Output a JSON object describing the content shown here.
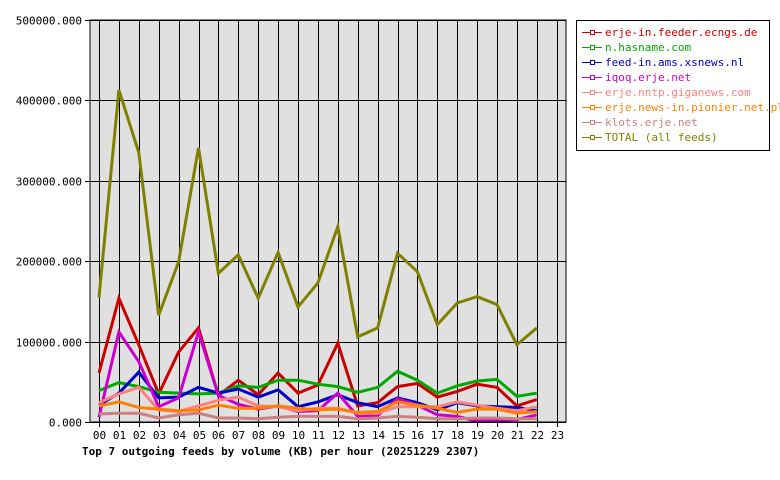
{
  "chart_data": {
    "type": "line",
    "title": "Top 7 outgoing feeds by volume (KB) per hour (20251229 2307)",
    "xlabel": "",
    "ylabel": "",
    "ylim": [
      0,
      500000
    ],
    "yticks": [
      "0.000",
      "100000.000",
      "200000.000",
      "300000.000",
      "400000.000",
      "500000.000"
    ],
    "categories": [
      "00",
      "01",
      "02",
      "03",
      "04",
      "05",
      "06",
      "07",
      "08",
      "09",
      "10",
      "11",
      "12",
      "13",
      "14",
      "15",
      "16",
      "17",
      "18",
      "19",
      "20",
      "21",
      "22",
      "23"
    ],
    "grid": true,
    "legend_position": "right",
    "series": [
      {
        "name": "erje-in.feeder.ecngs.de",
        "color": "#cc0000",
        "values": [
          61000,
          154000,
          96000,
          35000,
          87000,
          117000,
          33000,
          52000,
          34000,
          61000,
          36000,
          46000,
          98000,
          20000,
          24000,
          44000,
          48000,
          31000,
          38000,
          47000,
          43000,
          20000,
          28000
        ]
      },
      {
        "name": "n.hasname.com",
        "color": "#00aa00",
        "values": [
          39000,
          49000,
          44000,
          37000,
          36000,
          35000,
          36000,
          45000,
          43000,
          52000,
          52000,
          47000,
          44000,
          37000,
          43000,
          63000,
          52000,
          36000,
          45000,
          51000,
          53000,
          32000,
          36000
        ]
      },
      {
        "name": "feed-in.ams.xsnews.nl",
        "color": "#0000cc",
        "values": [
          21000,
          36000,
          62000,
          30000,
          31000,
          43000,
          36000,
          41000,
          31000,
          40000,
          19000,
          25000,
          34000,
          24000,
          19000,
          30000,
          24000,
          15000,
          24000,
          20000,
          19000,
          18000,
          14000
        ]
      },
      {
        "name": "iqoq.erje.net",
        "color": "#cc00cc",
        "values": [
          6000,
          112000,
          75000,
          19000,
          30000,
          112000,
          33000,
          22000,
          16000,
          20000,
          13000,
          14000,
          36000,
          7000,
          8000,
          29000,
          21000,
          9000,
          7000,
          1000,
          2000,
          3000,
          9000
        ]
      },
      {
        "name": "erje.nntp.giganews.com",
        "color": "#ff8080",
        "values": [
          24000,
          35000,
          43000,
          15000,
          13000,
          20000,
          27000,
          31000,
          20000,
          19000,
          14000,
          17000,
          17000,
          11000,
          11000,
          19000,
          19000,
          19000,
          25000,
          21000,
          17000,
          14000,
          19000
        ]
      },
      {
        "name": "erje.news-in.pionier.net.pl",
        "color": "#ff8000",
        "values": [
          20000,
          25000,
          18000,
          16000,
          14000,
          15000,
          21000,
          17000,
          17000,
          20000,
          17000,
          15000,
          16000,
          12000,
          13000,
          25000,
          21000,
          17000,
          12000,
          16000,
          16000,
          11000,
          13000
        ]
      },
      {
        "name": "klots.erje.net",
        "color": "#cc8080",
        "values": [
          10000,
          11000,
          11000,
          5000,
          9000,
          11000,
          5000,
          5000,
          4000,
          6000,
          7000,
          7000,
          7000,
          4000,
          5000,
          7000,
          6000,
          4000,
          4000,
          5000,
          5000,
          4000,
          4000
        ]
      },
      {
        "name": "TOTAL (all feeds)",
        "color": "#808000",
        "values": [
          155000,
          413000,
          335000,
          133000,
          199000,
          341000,
          185000,
          208000,
          154000,
          211000,
          143000,
          173000,
          243000,
          106000,
          117000,
          210000,
          187000,
          121000,
          148000,
          156000,
          146000,
          96000,
          117000
        ]
      }
    ]
  },
  "legend": {
    "items": [
      {
        "label": "erje-in.feeder.ecngs.de",
        "color": "#cc0000"
      },
      {
        "label": "n.hasname.com",
        "color": "#00aa00"
      },
      {
        "label": "feed-in.ams.xsnews.nl",
        "color": "#0000cc"
      },
      {
        "label": "iqoq.erje.net",
        "color": "#cc00cc"
      },
      {
        "label": "erje.nntp.giganews.com",
        "color": "#ff8080"
      },
      {
        "label": "erje.news-in.pionier.net.pl",
        "color": "#ff8000"
      },
      {
        "label": "klots.erje.net",
        "color": "#cc8080"
      },
      {
        "label": "TOTAL (all feeds)",
        "color": "#808000"
      }
    ]
  },
  "colors": {
    "plot_background": "#e0e0e0",
    "grid": "#000000",
    "axis": "#000000"
  }
}
